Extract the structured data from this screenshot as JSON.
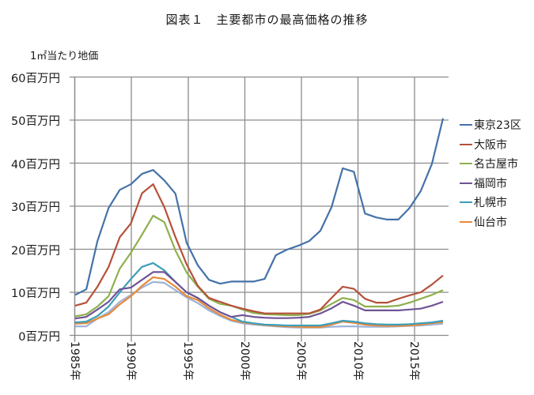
{
  "chart_data": {
    "type": "line",
    "title": "図表１　主要都市の最高価格の推移",
    "ylabel": "1㎡当たり地価",
    "xlabel": "",
    "ylim": [
      0,
      60
    ],
    "yticks": [
      "0百万円",
      "10百万円",
      "20百万円",
      "30百万円",
      "40百万円",
      "50百万円",
      "60百万円"
    ],
    "xticks": [
      "1985年",
      "1990年",
      "1995年",
      "2000年",
      "2005年",
      "2010年",
      "2015年"
    ],
    "grid": true,
    "legend_position": "right",
    "x": [
      1985,
      1986,
      1987,
      1988,
      1989,
      1990,
      1991,
      1992,
      1993,
      1994,
      1995,
      1996,
      1997,
      1998,
      1999,
      2000,
      2001,
      2002,
      2003,
      2004,
      2005,
      2006,
      2007,
      2008,
      2009,
      2010,
      2011,
      2012,
      2013,
      2014,
      2015,
      2016,
      2017,
      2018
    ],
    "series": [
      {
        "name": "東京23区",
        "color": "#4472a8",
        "in_legend": true,
        "values": [
          9.4,
          10.7,
          21.9,
          29.6,
          33.8,
          35.1,
          37.5,
          38.4,
          36.0,
          32.9,
          21.5,
          16.3,
          12.9,
          12.0,
          12.5,
          12.5,
          12.5,
          13.1,
          18.6,
          19.9,
          20.8,
          21.9,
          24.3,
          29.8,
          38.8,
          38.0,
          28.3,
          27.4,
          26.9,
          26.9,
          29.6,
          33.5,
          39.8,
          50.4
        ]
      },
      {
        "name": "大阪市",
        "color": "#b5513a",
        "in_legend": true,
        "values": [
          6.9,
          7.6,
          11.3,
          15.9,
          22.8,
          26.0,
          33.0,
          35.1,
          29.8,
          22.8,
          16.5,
          11.5,
          8.7,
          7.8,
          6.9,
          6.2,
          5.6,
          5.1,
          5.1,
          5.1,
          5.1,
          5.1,
          6.0,
          8.7,
          11.3,
          10.8,
          8.5,
          7.6,
          7.6,
          8.5,
          9.3,
          10.0,
          11.8,
          13.9
        ]
      },
      {
        "name": "名古屋市",
        "color": "#8eb04e",
        "in_legend": true,
        "values": [
          4.4,
          4.9,
          6.7,
          9.1,
          15.5,
          19.2,
          23.4,
          27.8,
          26.3,
          19.7,
          14.6,
          11.3,
          8.5,
          7.3,
          6.9,
          6.0,
          5.2,
          4.9,
          4.8,
          4.7,
          4.7,
          5.0,
          5.8,
          7.3,
          8.7,
          8.2,
          6.7,
          6.7,
          6.7,
          6.9,
          7.6,
          8.5,
          9.4,
          10.5
        ]
      },
      {
        "name": "福岡市",
        "color": "#6f5496",
        "in_legend": true,
        "values": [
          3.9,
          4.3,
          6.0,
          7.8,
          10.7,
          11.1,
          12.9,
          14.7,
          14.7,
          12.4,
          10.0,
          8.7,
          6.9,
          5.4,
          4.3,
          4.7,
          4.3,
          4.1,
          4.0,
          4.0,
          4.1,
          4.3,
          5.1,
          6.3,
          7.8,
          6.9,
          5.8,
          5.8,
          5.8,
          5.8,
          6.0,
          6.2,
          6.9,
          7.8
        ]
      },
      {
        "name": "札幌市",
        "color": "#3d9fb8",
        "in_legend": true,
        "values": [
          3.0,
          3.2,
          4.5,
          6.7,
          10.0,
          13.1,
          15.9,
          16.8,
          15.1,
          12.4,
          10.0,
          8.7,
          6.9,
          5.4,
          4.3,
          3.2,
          2.8,
          2.5,
          2.4,
          2.3,
          2.3,
          2.3,
          2.3,
          2.8,
          3.4,
          3.2,
          2.8,
          2.6,
          2.5,
          2.5,
          2.6,
          2.8,
          3.0,
          3.4
        ]
      },
      {
        "name": "仙台市",
        "color": "#e8893a",
        "in_legend": true,
        "values": [
          2.7,
          2.8,
          3.9,
          4.9,
          7.2,
          9.1,
          11.5,
          13.5,
          13.1,
          11.3,
          9.1,
          8.2,
          6.3,
          4.8,
          3.6,
          3.0,
          2.7,
          2.4,
          2.2,
          2.1,
          2.0,
          1.9,
          1.9,
          2.5,
          3.2,
          2.9,
          2.5,
          2.3,
          2.2,
          2.2,
          2.3,
          2.5,
          2.8,
          3.1
        ]
      },
      {
        "name": "",
        "color": "#9db4d8",
        "in_legend": false,
        "values": [
          2.1,
          2.1,
          3.9,
          5.4,
          7.8,
          9.4,
          11.1,
          12.4,
          12.2,
          10.5,
          8.8,
          7.5,
          5.8,
          4.5,
          3.4,
          2.8,
          2.5,
          2.3,
          2.1,
          1.9,
          1.8,
          1.8,
          1.8,
          2.0,
          2.1,
          2.1,
          2.0,
          2.0,
          2.0,
          2.1,
          2.2,
          2.3,
          2.5,
          2.7
        ]
      }
    ]
  }
}
